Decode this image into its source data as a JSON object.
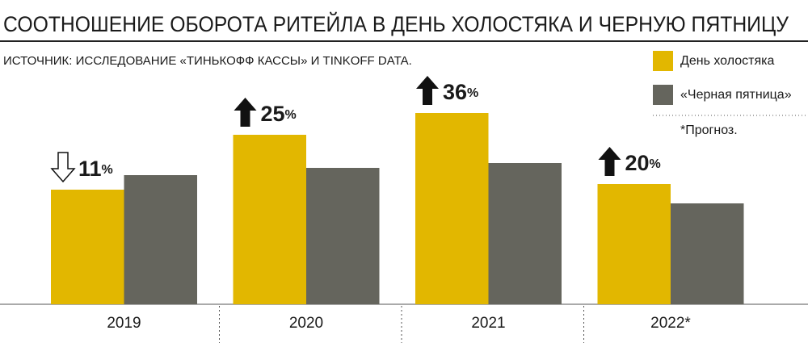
{
  "chart_data": {
    "type": "bar",
    "title": "СООТНОШЕНИЕ ОБОРОТА РИТЕЙЛА В ДЕНЬ ХОЛОСТЯКА И ЧЕРНУЮ ПЯТНИЦУ",
    "subtitle": "ИСТОЧНИК: ИССЛЕДОВАНИЕ «ТИНЬКОФФ КАССЫ» И TINKOFF DATA.",
    "note": "*Прогноз.",
    "categories": [
      "2019",
      "2020",
      "2021",
      "2022*"
    ],
    "series": [
      {
        "name": "День холостяка",
        "color": "#e2b700",
        "values": [
          142,
          210,
          237,
          149
        ]
      },
      {
        "name": "«Черная пятница»",
        "color": "#65655d",
        "values": [
          160,
          169,
          175,
          125
        ]
      }
    ],
    "changes": [
      {
        "value": 11,
        "direction": "down"
      },
      {
        "value": 25,
        "direction": "up"
      },
      {
        "value": 36,
        "direction": "up"
      },
      {
        "value": 20,
        "direction": "up"
      }
    ],
    "change_unit": "%",
    "ylim": [
      0,
      250
    ]
  }
}
